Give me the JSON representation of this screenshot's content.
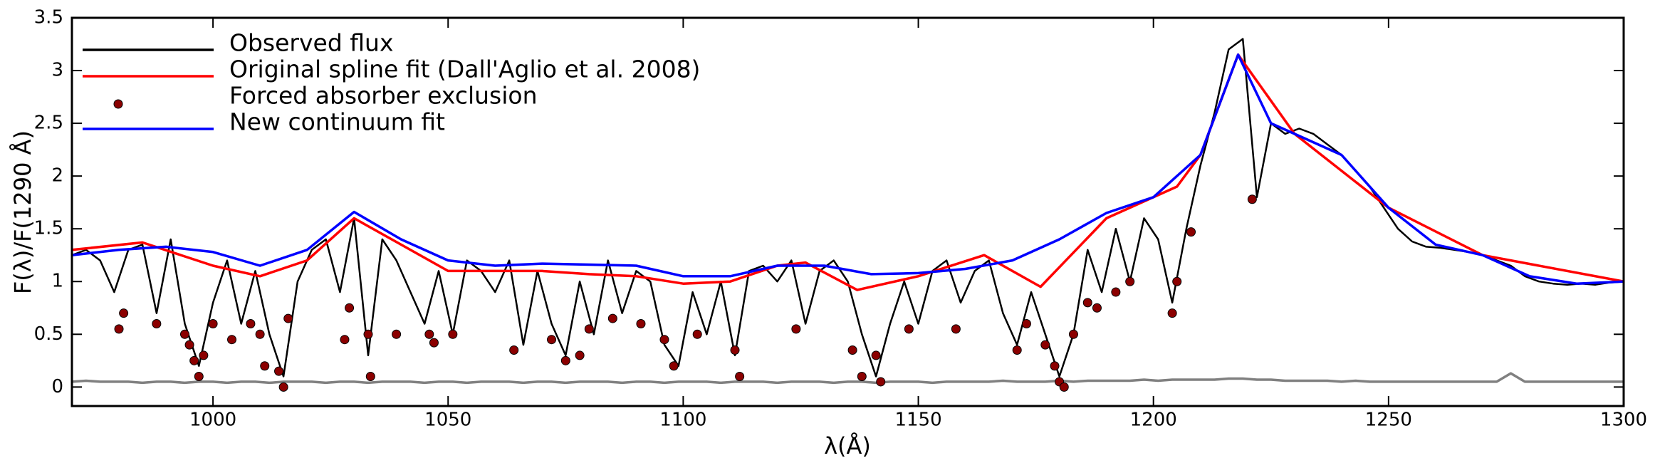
{
  "chart_data": {
    "type": "line",
    "xlabel": "λ(Å)",
    "ylabel": "F(λ)/F(1290 Å)",
    "xlim": [
      970,
      1300
    ],
    "ylim": [
      -0.18,
      3.5
    ],
    "xticks": [
      1000,
      1050,
      1100,
      1150,
      1200,
      1250,
      1300
    ],
    "yticks": [
      0,
      0.5,
      1,
      1.5,
      2,
      2.5,
      3,
      3.5
    ],
    "legend": "upper left",
    "x": [
      970,
      973,
      976,
      979,
      982,
      985,
      988,
      991,
      994,
      997,
      1000,
      1003,
      1006,
      1009,
      1012,
      1015,
      1018,
      1021,
      1024,
      1027,
      1030,
      1033,
      1036,
      1039,
      1042,
      1045,
      1048,
      1051,
      1054,
      1057,
      1060,
      1063,
      1066,
      1069,
      1072,
      1075,
      1078,
      1081,
      1084,
      1087,
      1090,
      1093,
      1096,
      1099,
      1102,
      1105,
      1108,
      1111,
      1114,
      1117,
      1120,
      1123,
      1126,
      1129,
      1132,
      1135,
      1138,
      1141,
      1144,
      1147,
      1150,
      1153,
      1156,
      1159,
      1162,
      1165,
      1168,
      1171,
      1174,
      1177,
      1180,
      1183,
      1186,
      1189,
      1192,
      1195,
      1198,
      1201,
      1204,
      1207,
      1210,
      1213,
      1216,
      1219,
      1222,
      1225,
      1228,
      1231,
      1234,
      1237,
      1240,
      1243,
      1246,
      1249,
      1252,
      1255,
      1258,
      1261,
      1264,
      1267,
      1270,
      1273,
      1276,
      1279,
      1282,
      1285,
      1288,
      1291,
      1294,
      1297,
      1300
    ],
    "series": [
      {
        "name": "Observed flux",
        "color": "#000000",
        "values": [
          1.25,
          1.3,
          1.2,
          0.9,
          1.3,
          1.35,
          0.7,
          1.4,
          0.6,
          0.2,
          0.8,
          1.2,
          0.6,
          1.1,
          0.5,
          0.1,
          1.0,
          1.3,
          1.4,
          0.9,
          1.6,
          0.3,
          1.4,
          1.2,
          0.9,
          0.6,
          1.1,
          0.5,
          1.2,
          1.1,
          0.9,
          1.2,
          0.4,
          1.1,
          0.6,
          0.3,
          1.0,
          0.5,
          1.2,
          0.7,
          1.1,
          1.0,
          0.4,
          0.2,
          0.9,
          0.5,
          1.0,
          0.3,
          1.1,
          1.15,
          1.0,
          1.2,
          0.6,
          1.1,
          1.2,
          1.0,
          0.5,
          0.1,
          0.6,
          1.0,
          0.6,
          1.1,
          1.2,
          0.8,
          1.1,
          1.2,
          0.7,
          0.4,
          0.9,
          0.5,
          0.1,
          0.5,
          1.3,
          0.9,
          1.5,
          1.0,
          1.6,
          1.4,
          0.8,
          1.5,
          2.1,
          2.6,
          3.2,
          3.3,
          1.8,
          2.5,
          2.4,
          2.45,
          2.4,
          2.3,
          2.2,
          2.05,
          1.9,
          1.7,
          1.5,
          1.38,
          1.33,
          1.32,
          1.3,
          1.28,
          1.25,
          1.2,
          1.15,
          1.05,
          1.0,
          0.98,
          0.97,
          0.98,
          0.97,
          0.99,
          1.0
        ]
      },
      {
        "name": "Original spline fit (Dall'Aglio et al. 2008)",
        "color": "#ff0000",
        "x": [
          970,
          985,
          1000,
          1010,
          1020,
          1030,
          1040,
          1050,
          1060,
          1070,
          1080,
          1090,
          1100,
          1110,
          1120,
          1126,
          1137,
          1150,
          1164,
          1176,
          1190,
          1205,
          1210,
          1218,
          1230,
          1250,
          1270,
          1300
        ],
        "values": [
          1.3,
          1.37,
          1.15,
          1.05,
          1.2,
          1.6,
          1.35,
          1.1,
          1.1,
          1.1,
          1.07,
          1.05,
          0.98,
          1.0,
          1.15,
          1.18,
          0.92,
          1.05,
          1.25,
          0.95,
          1.6,
          1.9,
          2.2,
          3.15,
          2.4,
          1.7,
          1.25,
          1.0
        ]
      },
      {
        "name": "Forced absorber exclusion",
        "color": "#8b0000",
        "type": "scatter",
        "x": [
          980,
          981,
          988,
          994,
          995,
          996,
          997,
          998,
          1000,
          1004,
          1008,
          1010,
          1011,
          1014,
          1015,
          1016,
          1028,
          1029,
          1033,
          1033.5,
          1039,
          1046,
          1047,
          1051,
          1064,
          1072,
          1075,
          1078,
          1080,
          1085,
          1091,
          1096,
          1098,
          1103,
          1111,
          1112,
          1124,
          1136,
          1138,
          1141,
          1142,
          1148,
          1158,
          1171,
          1173,
          1177,
          1179,
          1180,
          1181,
          1183,
          1186,
          1188,
          1192,
          1195,
          1204,
          1205,
          1208,
          1221
        ],
        "values": [
          0.55,
          0.7,
          0.6,
          0.5,
          0.4,
          0.25,
          0.1,
          0.3,
          0.6,
          0.45,
          0.6,
          0.5,
          0.2,
          0.15,
          0.0,
          0.65,
          0.45,
          0.75,
          0.5,
          0.1,
          0.5,
          0.5,
          0.42,
          0.5,
          0.35,
          0.45,
          0.25,
          0.3,
          0.55,
          0.65,
          0.6,
          0.45,
          0.2,
          0.5,
          0.35,
          0.1,
          0.55,
          0.35,
          0.1,
          0.3,
          0.05,
          0.55,
          0.55,
          0.35,
          0.6,
          0.4,
          0.2,
          0.05,
          0.0,
          0.5,
          0.8,
          0.75,
          0.9,
          1.0,
          0.7,
          1.0,
          1.47,
          1.78
        ]
      },
      {
        "name": "New continuum fit",
        "color": "#0000ff",
        "x": [
          970,
          980,
          990,
          1000,
          1010,
          1020,
          1030,
          1040,
          1050,
          1060,
          1070,
          1080,
          1090,
          1100,
          1110,
          1120,
          1130,
          1140,
          1150,
          1160,
          1170,
          1180,
          1190,
          1200,
          1210,
          1218,
          1225,
          1230,
          1240,
          1250,
          1260,
          1270,
          1280,
          1290,
          1300
        ],
        "values": [
          1.25,
          1.3,
          1.33,
          1.28,
          1.15,
          1.3,
          1.66,
          1.4,
          1.2,
          1.15,
          1.17,
          1.16,
          1.15,
          1.05,
          1.05,
          1.15,
          1.15,
          1.07,
          1.08,
          1.12,
          1.2,
          1.4,
          1.65,
          1.8,
          2.2,
          3.15,
          2.5,
          2.4,
          2.2,
          1.7,
          1.35,
          1.25,
          1.05,
          0.98,
          1.0
        ]
      },
      {
        "color": "#808080",
        "values": [
          0.05,
          0.06,
          0.05,
          0.05,
          0.05,
          0.04,
          0.05,
          0.05,
          0.04,
          0.05,
          0.05,
          0.04,
          0.05,
          0.05,
          0.04,
          0.05,
          0.05,
          0.05,
          0.04,
          0.05,
          0.05,
          0.04,
          0.05,
          0.05,
          0.05,
          0.04,
          0.05,
          0.05,
          0.04,
          0.05,
          0.05,
          0.05,
          0.04,
          0.05,
          0.05,
          0.04,
          0.05,
          0.05,
          0.05,
          0.04,
          0.05,
          0.05,
          0.04,
          0.05,
          0.05,
          0.05,
          0.04,
          0.05,
          0.05,
          0.05,
          0.04,
          0.05,
          0.05,
          0.05,
          0.04,
          0.05,
          0.05,
          0.04,
          0.05,
          0.05,
          0.05,
          0.04,
          0.05,
          0.05,
          0.05,
          0.05,
          0.06,
          0.05,
          0.05,
          0.05,
          0.06,
          0.05,
          0.06,
          0.06,
          0.06,
          0.06,
          0.07,
          0.06,
          0.07,
          0.07,
          0.07,
          0.07,
          0.08,
          0.08,
          0.07,
          0.07,
          0.06,
          0.06,
          0.06,
          0.06,
          0.05,
          0.06,
          0.05,
          0.05,
          0.05,
          0.05,
          0.05,
          0.05,
          0.05,
          0.05,
          0.05,
          0.05,
          0.13,
          0.05,
          0.05,
          0.05,
          0.05,
          0.05,
          0.05,
          0.05,
          0.05
        ]
      }
    ]
  }
}
